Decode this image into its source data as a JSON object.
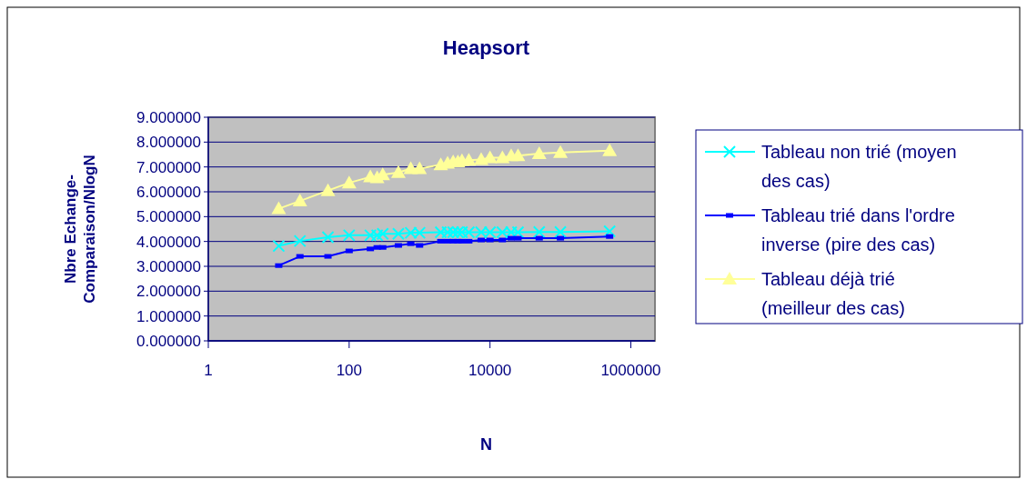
{
  "chart_data": {
    "type": "line",
    "title": "Heapsort",
    "xlabel": "N",
    "ylabel": "Nbre Echange-Comparaison/NlogN",
    "log": "x",
    "grid": "y",
    "legend": "right",
    "x": [
      10,
      20,
      50,
      100,
      200,
      250,
      300,
      500,
      750,
      1000,
      2000,
      2500,
      3000,
      3500,
      4000,
      5000,
      7500,
      10000,
      15000,
      20000,
      25000,
      50000,
      100000,
      500000
    ],
    "xlim": [
      1,
      2200000
    ],
    "xticks": [
      1,
      100,
      10000,
      1000000
    ],
    "ylim": [
      0,
      9
    ],
    "yticks": [
      {
        "value": 0,
        "label": "0.000000"
      },
      {
        "value": 1,
        "label": "1.000000"
      },
      {
        "value": 2,
        "label": "2.000000"
      },
      {
        "value": 3,
        "label": "3.000000"
      },
      {
        "value": 4,
        "label": "4.000000"
      },
      {
        "value": 5,
        "label": "5.000000"
      },
      {
        "value": 6,
        "label": "6.000000"
      },
      {
        "value": 7,
        "label": "7.000000"
      },
      {
        "value": 8,
        "label": "8.000000"
      },
      {
        "value": 9,
        "label": "9.000000"
      }
    ],
    "series": [
      {
        "name": "Tableau non trié (moyen des cas)",
        "color": "#00ffff",
        "marker": "cross",
        "values": [
          3.82,
          4.02,
          4.17,
          4.25,
          4.25,
          4.25,
          4.31,
          4.31,
          4.35,
          4.35,
          4.37,
          4.37,
          4.37,
          4.37,
          4.37,
          4.37,
          4.37,
          4.37,
          4.37,
          4.37,
          4.37,
          4.38,
          4.38,
          4.41
        ]
      },
      {
        "name": "Tableau trié dans l'ordre inverse (pire des cas)",
        "color": "#0000ff",
        "marker": "square",
        "values": [
          3.03,
          3.4,
          3.4,
          3.62,
          3.7,
          3.76,
          3.76,
          3.84,
          3.91,
          3.84,
          4.01,
          4.01,
          4.01,
          4.01,
          4.01,
          4.01,
          4.06,
          4.06,
          4.06,
          4.13,
          4.13,
          4.13,
          4.13,
          4.2
        ]
      },
      {
        "name": "Tableau déjà trié (meilleur des cas)",
        "color": "#ffff99",
        "marker": "triangle",
        "values": [
          5.32,
          5.63,
          6.05,
          6.36,
          6.6,
          6.57,
          6.69,
          6.78,
          6.93,
          6.93,
          7.09,
          7.15,
          7.21,
          7.21,
          7.25,
          7.27,
          7.3,
          7.37,
          7.37,
          7.45,
          7.45,
          7.54,
          7.58,
          7.66
        ]
      }
    ]
  }
}
